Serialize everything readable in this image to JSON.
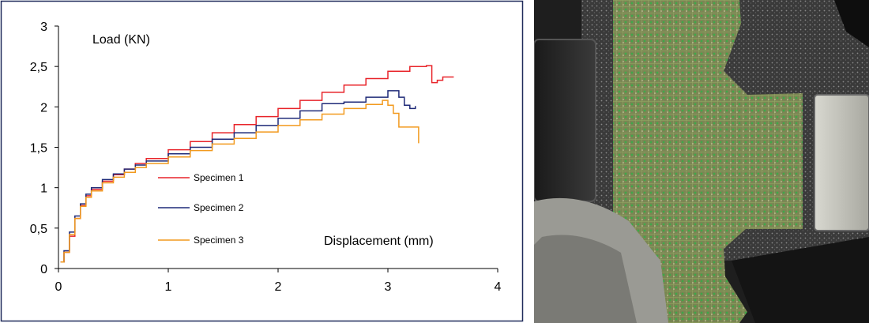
{
  "chart_data": {
    "type": "line",
    "title": "",
    "ylabel": "Load (KN)",
    "xlabel": "Displacement (mm)",
    "xlim": [
      0,
      4
    ],
    "ylim": [
      0,
      3
    ],
    "x_ticks": [
      0,
      1,
      2,
      3,
      4
    ],
    "x_tick_labels": [
      "0",
      "1",
      "2",
      "3",
      "4"
    ],
    "y_ticks": [
      0,
      0.5,
      1,
      1.5,
      2,
      2.5,
      3
    ],
    "y_tick_labels": [
      "0",
      "0,5",
      "1",
      "1,5",
      "2",
      "2,5",
      "3"
    ],
    "grid": false,
    "legend_position": "center-left",
    "series": [
      {
        "name": "Specimen 1",
        "color": "#e8242a",
        "x": [
          0.02,
          0.05,
          0.1,
          0.15,
          0.2,
          0.25,
          0.3,
          0.4,
          0.5,
          0.6,
          0.7,
          0.8,
          1.0,
          1.2,
          1.4,
          1.6,
          1.8,
          2.0,
          2.2,
          2.4,
          2.6,
          2.8,
          3.0,
          3.2,
          3.35,
          3.4,
          3.45,
          3.5,
          3.6
        ],
        "y": [
          0.08,
          0.2,
          0.4,
          0.62,
          0.78,
          0.9,
          0.98,
          1.08,
          1.16,
          1.23,
          1.3,
          1.36,
          1.47,
          1.57,
          1.68,
          1.78,
          1.88,
          1.98,
          2.08,
          2.18,
          2.27,
          2.35,
          2.44,
          2.5,
          2.51,
          2.3,
          2.33,
          2.37,
          2.37
        ]
      },
      {
        "name": "Specimen 2",
        "color": "#1f2a78",
        "x": [
          0.02,
          0.05,
          0.1,
          0.15,
          0.2,
          0.25,
          0.3,
          0.4,
          0.5,
          0.6,
          0.7,
          0.8,
          1.0,
          1.2,
          1.4,
          1.6,
          1.8,
          2.0,
          2.2,
          2.4,
          2.6,
          2.8,
          3.0,
          3.1,
          3.15,
          3.2,
          3.25
        ],
        "y": [
          0.08,
          0.22,
          0.45,
          0.65,
          0.8,
          0.92,
          1.0,
          1.1,
          1.17,
          1.23,
          1.28,
          1.33,
          1.42,
          1.5,
          1.6,
          1.68,
          1.77,
          1.86,
          1.95,
          2.04,
          2.06,
          2.12,
          2.2,
          2.12,
          2.02,
          1.98,
          2.01
        ]
      },
      {
        "name": "Specimen 3",
        "color": "#f29a1e",
        "x": [
          0.02,
          0.05,
          0.1,
          0.15,
          0.2,
          0.25,
          0.3,
          0.4,
          0.5,
          0.6,
          0.7,
          0.8,
          1.0,
          1.2,
          1.4,
          1.6,
          1.8,
          2.0,
          2.2,
          2.4,
          2.6,
          2.8,
          2.95,
          3.0,
          3.05,
          3.1,
          3.28,
          3.28
        ],
        "y": [
          0.08,
          0.2,
          0.42,
          0.62,
          0.77,
          0.88,
          0.96,
          1.06,
          1.13,
          1.19,
          1.25,
          1.3,
          1.38,
          1.46,
          1.54,
          1.61,
          1.69,
          1.77,
          1.84,
          1.91,
          1.98,
          2.03,
          2.08,
          2.02,
          1.92,
          1.75,
          1.75,
          1.55
        ]
      }
    ]
  },
  "photo": {
    "alt": "specimen-with-speckle-pattern"
  }
}
